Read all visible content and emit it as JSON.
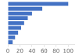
{
  "chart_data": {
    "type": "bar",
    "orientation": "horizontal",
    "categories": [
      null,
      null,
      null,
      null,
      null,
      null,
      null,
      null,
      null
    ],
    "values": [
      100,
      57,
      40,
      33,
      27,
      22,
      17,
      12,
      8
    ],
    "color": "#4472c4",
    "xlim": [
      0,
      110
    ],
    "xticks": [
      0,
      20,
      40,
      60,
      80,
      100
    ],
    "grid": false,
    "tick_labels": "x"
  }
}
